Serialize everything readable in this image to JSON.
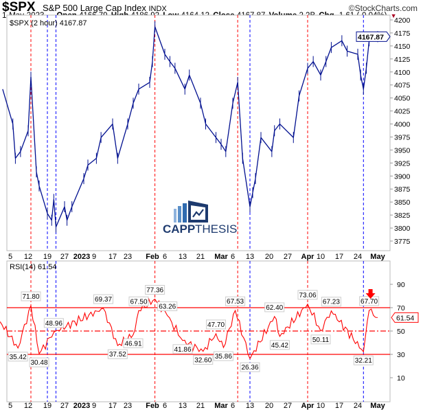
{
  "header": {
    "symbol": "$SPX",
    "name": "S&P 500 Large Cap Index",
    "exchange": "INDX",
    "brand": "©StockCharts.com",
    "date": "1-May-2023",
    "open_label": "Open",
    "open": "4166.79",
    "high_label": "High",
    "high": "4186.92",
    "low_label": "Low",
    "low": "4164.12",
    "close_label": "Close",
    "close": "4167.87",
    "volume_label": "Volume",
    "volume": "2.2B",
    "chg_label": "Chg",
    "chg": "-1.61 (-0.04%)",
    "chg_color": "#aa0022"
  },
  "logo": {
    "text_bold": "CAPP",
    "text_light": "THESIS",
    "color": "#1d3a6e"
  },
  "chart_data": [
    {
      "type": "line",
      "panel": "price",
      "legend": "$SPX (2 hour) 4167.87",
      "last_value_label": "4167.87",
      "series_color": "#000f8f",
      "ylim": [
        3760,
        4205
      ],
      "yticks": [
        4200,
        4175,
        4150,
        4125,
        4100,
        4075,
        4050,
        4025,
        4000,
        3975,
        3950,
        3925,
        3900,
        3875,
        3850,
        3825,
        3800,
        3775
      ],
      "x": [
        "2022-12-02",
        "2022-12-06",
        "2022-12-07",
        "2022-12-09",
        "2022-12-12",
        "2022-12-13",
        "2022-12-15",
        "2022-12-16",
        "2022-12-19",
        "2022-12-21",
        "2022-12-22",
        "2022-12-23",
        "2022-12-27",
        "2022-12-28",
        "2022-12-30",
        "2023-01-04",
        "2023-01-06",
        "2023-01-10",
        "2023-01-12",
        "2023-01-17",
        "2023-01-19",
        "2023-01-23",
        "2023-01-25",
        "2023-01-27",
        "2023-01-31",
        "2023-02-01",
        "2023-02-02",
        "2023-02-06",
        "2023-02-08",
        "2023-02-10",
        "2023-02-14",
        "2023-02-16",
        "2023-02-21",
        "2023-02-23",
        "2023-02-27",
        "2023-03-01",
        "2023-03-03",
        "2023-03-06",
        "2023-03-08",
        "2023-03-10",
        "2023-03-13",
        "2023-03-14",
        "2023-03-15",
        "2023-03-17",
        "2023-03-21",
        "2023-03-22",
        "2023-03-24",
        "2023-03-29",
        "2023-03-31",
        "2023-04-03",
        "2023-04-06",
        "2023-04-10",
        "2023-04-12",
        "2023-04-14",
        "2023-04-18",
        "2023-04-20",
        "2023-04-24",
        "2023-04-25",
        "2023-04-26",
        "2023-04-27",
        "2023-04-28",
        "2023-05-01"
      ],
      "values": [
        4067,
        4000,
        3934,
        3947,
        3987,
        4090,
        3908,
        3881,
        3828,
        3815,
        3855,
        3802,
        3841,
        3815,
        3841,
        3895,
        3921,
        3934,
        3974,
        4000,
        3934,
        4000,
        4040,
        4067,
        4080,
        4120,
        4187,
        4134,
        4120,
        4107,
        4067,
        4094,
        4040,
        4000,
        3974,
        3961,
        3947,
        4040,
        4080,
        3934,
        3841,
        3868,
        3895,
        3974,
        3947,
        3987,
        4000,
        3974,
        4054,
        4107,
        4120,
        4094,
        4120,
        4147,
        4160,
        4140,
        4134,
        4094,
        4067,
        4107,
        4160,
        4167.87
      ]
    },
    {
      "type": "line",
      "panel": "indicator",
      "legend": "RSI(14) 61.54",
      "last_value_label": "61.54",
      "series_color": "#ff0000",
      "ylim": [
        0,
        100
      ],
      "yticks": [
        90,
        70,
        50,
        30,
        10
      ],
      "reference_lines": [
        70,
        50,
        30
      ],
      "x": [
        "2022-12-01",
        "2022-12-08",
        "2022-12-13",
        "2022-12-16",
        "2022-12-22",
        "2023-01-13",
        "2023-01-19",
        "2023-01-25",
        "2023-01-27",
        "2023-02-02",
        "2023-02-07",
        "2023-02-13",
        "2023-02-22",
        "2023-02-27",
        "2023-03-02",
        "2023-03-07",
        "2023-03-13",
        "2023-03-22",
        "2023-03-24",
        "2023-04-03",
        "2023-04-10",
        "2023-04-14",
        "2023-04-26",
        "2023-04-28",
        "2023-05-01"
      ],
      "values": [
        58,
        35.42,
        71.8,
        30.48,
        48.96,
        69.37,
        37.52,
        46.91,
        67.5,
        77.36,
        63.26,
        41.86,
        32.6,
        47.7,
        35.86,
        67.53,
        26.36,
        62.4,
        45.42,
        73.06,
        50.11,
        67.23,
        32.21,
        67.7,
        61.54
      ],
      "annotations": [
        {
          "date": "2022-12-08",
          "label": "35.42",
          "kind": "low"
        },
        {
          "date": "2022-12-13",
          "label": "71.80",
          "kind": "high"
        },
        {
          "date": "2022-12-16",
          "label": "30.48",
          "kind": "low"
        },
        {
          "date": "2022-12-22",
          "label": "48.96",
          "kind": "high"
        },
        {
          "date": "2023-01-13",
          "label": "69.37",
          "kind": "high"
        },
        {
          "date": "2023-01-19",
          "label": "37.52",
          "kind": "low"
        },
        {
          "date": "2023-01-25",
          "label": "46.91",
          "kind": "low"
        },
        {
          "date": "2023-01-27",
          "label": "67.50",
          "kind": "high"
        },
        {
          "date": "2023-02-02",
          "label": "77.36",
          "kind": "high"
        },
        {
          "date": "2023-02-07",
          "label": "63.26",
          "kind": "high"
        },
        {
          "date": "2023-02-13",
          "label": "41.86",
          "kind": "low"
        },
        {
          "date": "2023-02-22",
          "label": "32.60",
          "kind": "low"
        },
        {
          "date": "2023-02-27",
          "label": "47.70",
          "kind": "high"
        },
        {
          "date": "2023-03-02",
          "label": "35.86",
          "kind": "low"
        },
        {
          "date": "2023-03-07",
          "label": "67.53",
          "kind": "high"
        },
        {
          "date": "2023-03-13",
          "label": "26.36",
          "kind": "low"
        },
        {
          "date": "2023-03-22",
          "label": "62.40",
          "kind": "high"
        },
        {
          "date": "2023-03-24",
          "label": "45.42",
          "kind": "low"
        },
        {
          "date": "2023-04-03",
          "label": "73.06",
          "kind": "high"
        },
        {
          "date": "2023-04-10",
          "label": "50.11",
          "kind": "low"
        },
        {
          "date": "2023-04-14",
          "label": "67.23",
          "kind": "high"
        },
        {
          "date": "2023-04-26",
          "label": "32.21",
          "kind": "low"
        },
        {
          "date": "2023-04-28",
          "label": "67.70",
          "kind": "high"
        }
      ],
      "signal_arrow": {
        "date": "2023-04-28",
        "direction": "down",
        "color": "#ff0000"
      }
    }
  ],
  "x_ticks": [
    {
      "date": "2022-12-05",
      "label": "5"
    },
    {
      "date": "2022-12-12",
      "label": "12"
    },
    {
      "date": "2022-12-19",
      "label": "19"
    },
    {
      "date": "2022-12-27",
      "label": "27"
    },
    {
      "date": "2023-01-03",
      "label": "2023",
      "bold": true
    },
    {
      "date": "2023-01-09",
      "label": "9"
    },
    {
      "date": "2023-01-17",
      "label": "17"
    },
    {
      "date": "2023-01-23",
      "label": "23"
    },
    {
      "date": "2023-02-01",
      "label": "Feb",
      "bold": true
    },
    {
      "date": "2023-02-06",
      "label": "6"
    },
    {
      "date": "2023-02-13",
      "label": "13"
    },
    {
      "date": "2023-02-21",
      "label": "21"
    },
    {
      "date": "2023-03-01",
      "label": "Mar",
      "bold": true
    },
    {
      "date": "2023-03-06",
      "label": "6"
    },
    {
      "date": "2023-03-13",
      "label": "13"
    },
    {
      "date": "2023-03-20",
      "label": "20"
    },
    {
      "date": "2023-03-27",
      "label": "27"
    },
    {
      "date": "2023-04-03",
      "label": "Apr",
      "bold": true
    },
    {
      "date": "2023-04-10",
      "label": "10"
    },
    {
      "date": "2023-04-17",
      "label": "17"
    },
    {
      "date": "2023-04-24",
      "label": "24"
    },
    {
      "date": "2023-05-01",
      "label": "May",
      "bold": true
    }
  ],
  "vertical_markers": [
    {
      "date": "2022-11-30",
      "color": "#ff0000"
    },
    {
      "date": "2022-12-13",
      "color": "#ff0000"
    },
    {
      "date": "2022-12-19",
      "color": "#0000ff"
    },
    {
      "date": "2022-12-23",
      "color": "#0000ff"
    },
    {
      "date": "2023-02-02",
      "color": "#ff0000"
    },
    {
      "date": "2023-03-08",
      "color": "#ff0000"
    },
    {
      "date": "2023-03-13",
      "color": "#0000ff"
    },
    {
      "date": "2023-04-03",
      "color": "#ff0000"
    },
    {
      "date": "2023-04-26",
      "color": "#0000ff"
    }
  ]
}
